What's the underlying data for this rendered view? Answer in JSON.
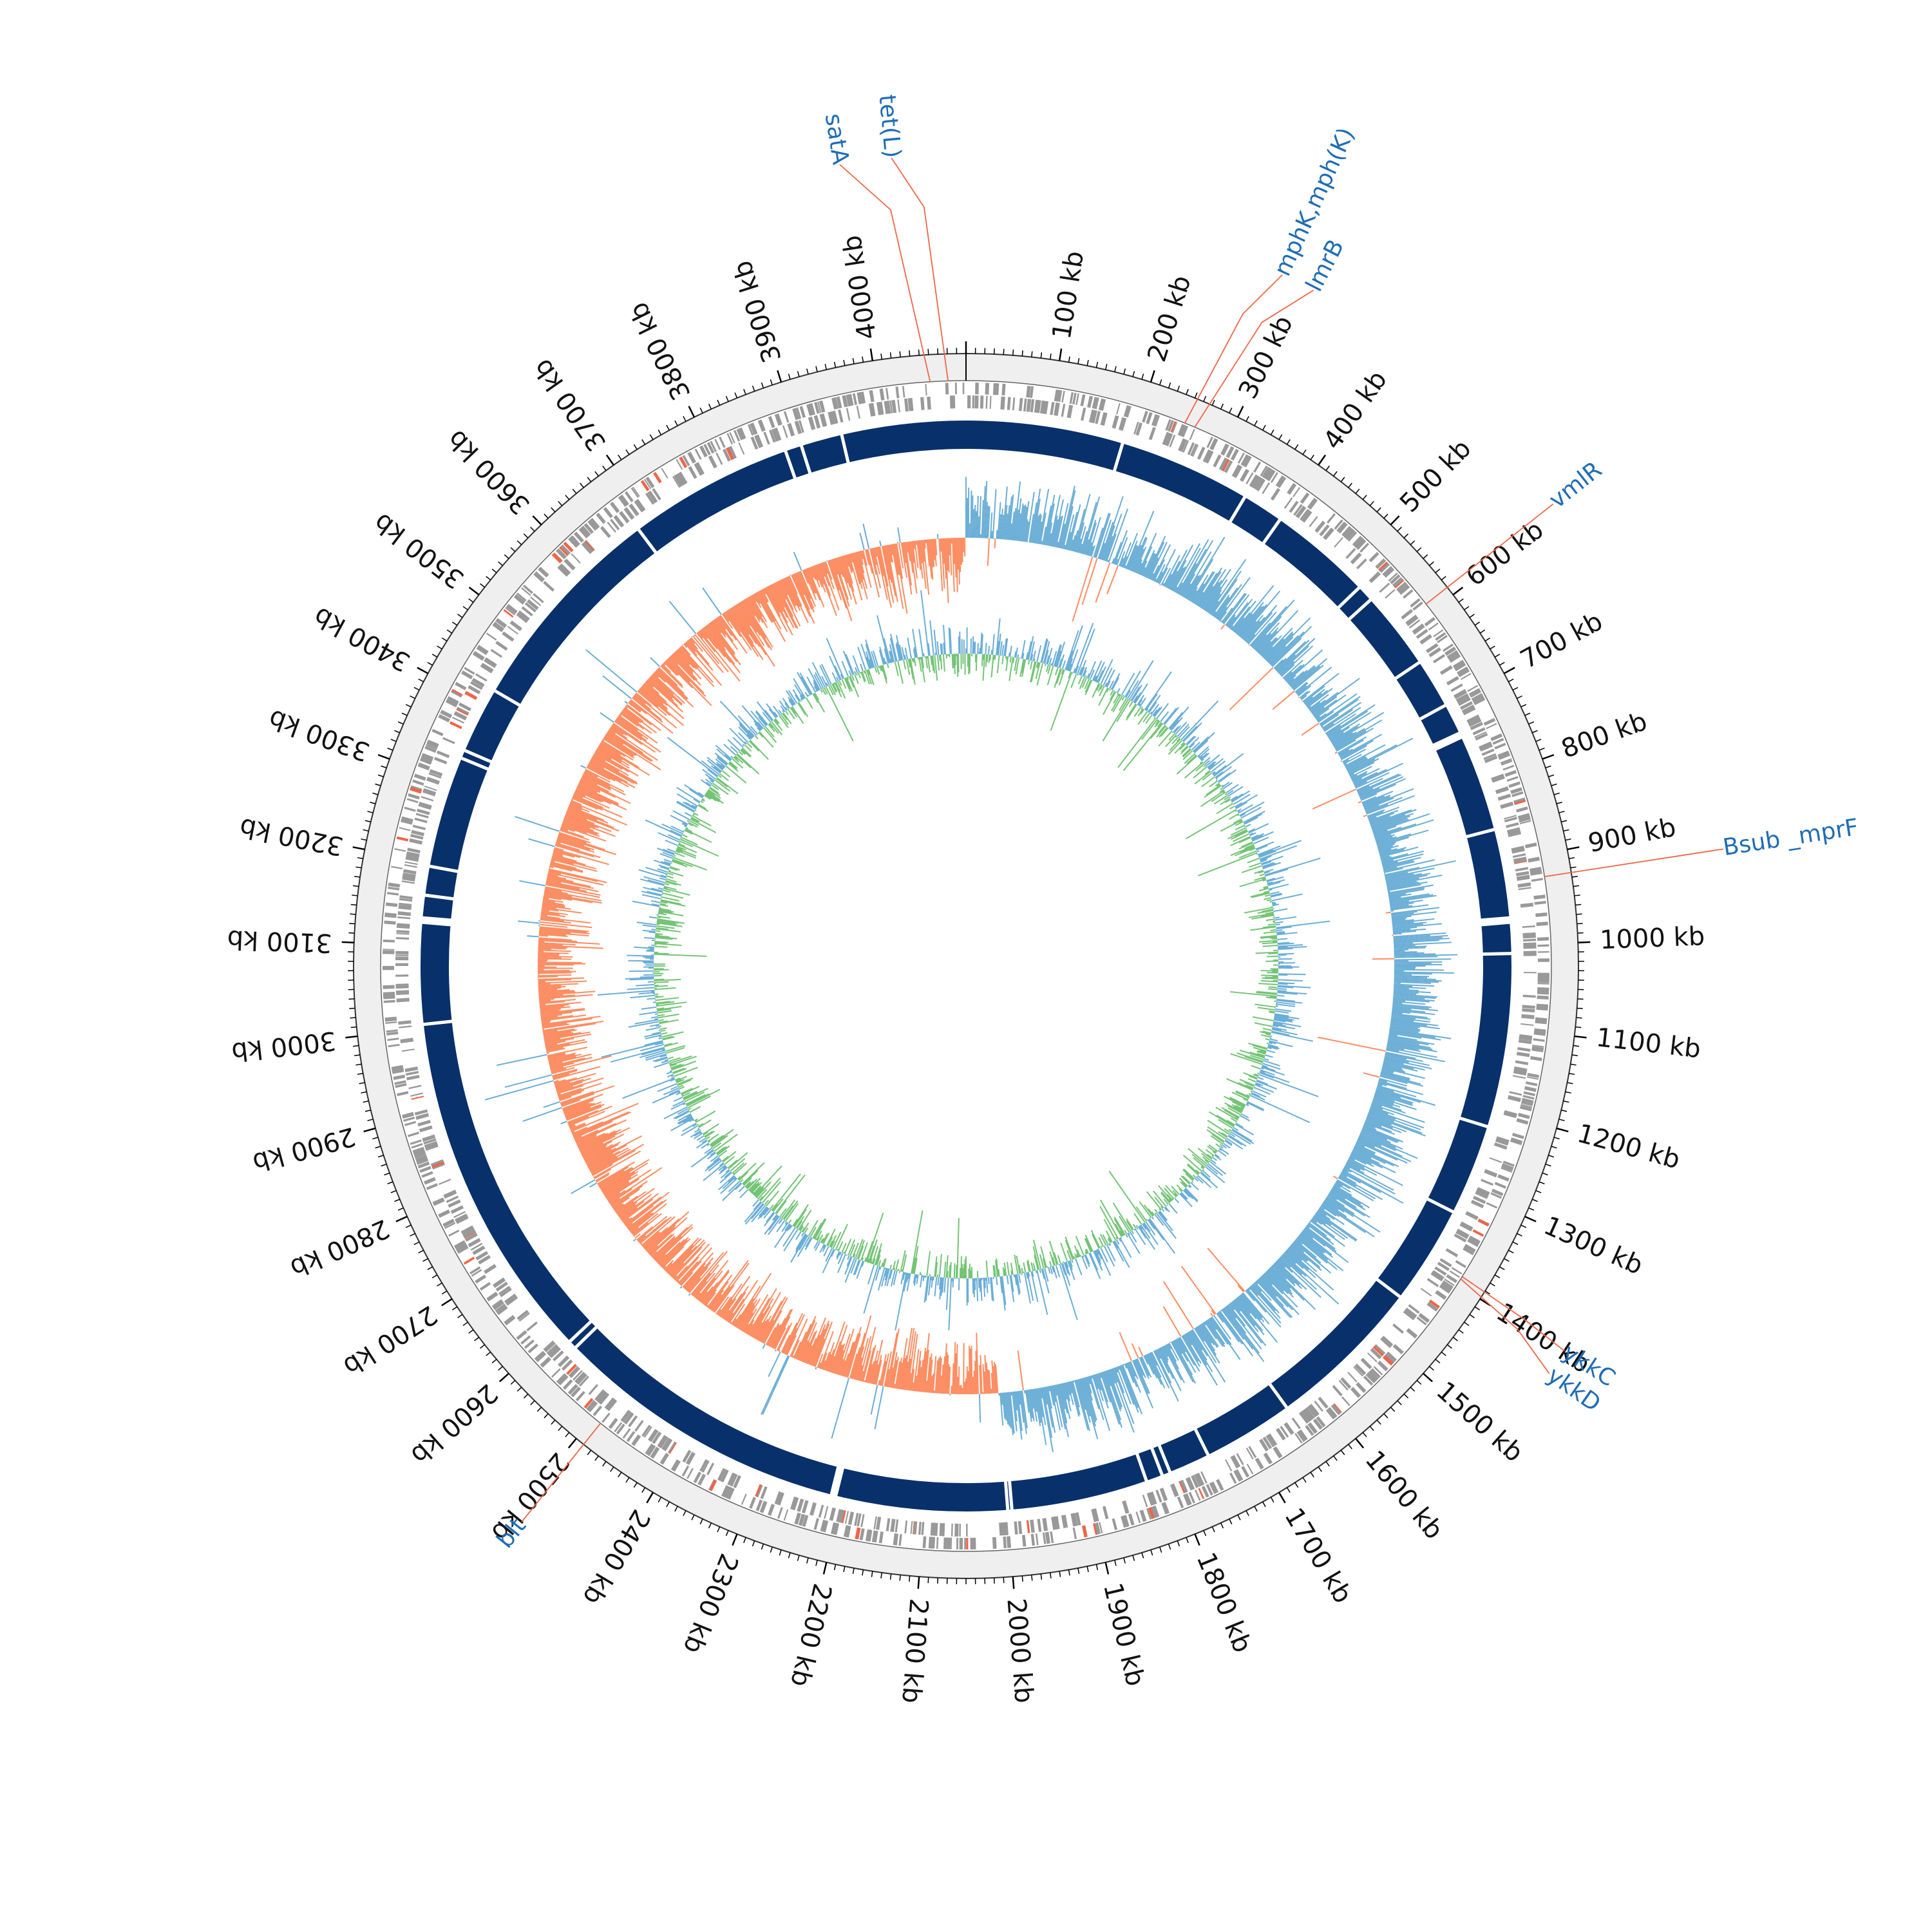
{
  "genome": {
    "length_kb": 4100,
    "tick_unit": "kb",
    "major_tick_step_kb": 100,
    "minor_tick_step_kb": 10
  },
  "tick_labels": [
    "4000 kb",
    "100 kb",
    "200 kb",
    "300 kb",
    "400 kb",
    "500 kb",
    "600 kb",
    "700 kb",
    "800 kb",
    "900 kb",
    "1000 kb",
    "1100 kb",
    "1200 kb",
    "1300 kb",
    "1400 kb",
    "1500 kb",
    "1600 kb",
    "1700 kb",
    "1800 kb",
    "1900 kb",
    "2000 kb",
    "2100 kb",
    "2200 kb",
    "2300 kb",
    "2400 kb",
    "2500 kb",
    "2600 kb",
    "2700 kb",
    "2800 kb",
    "2900 kb",
    "3000 kb",
    "3100 kb",
    "3200 kb",
    "3300 kb",
    "3400 kb",
    "3500 kb",
    "3600 kb",
    "3700 kb",
    "3800 kb",
    "3900 kb"
  ],
  "annotations": [
    {
      "label": "tet(L)",
      "position_kb": 4080
    },
    {
      "label": "satA",
      "position_kb": 4060
    },
    {
      "label": "mphK,mph(K)",
      "position_kb": 250
    },
    {
      "label": "lmrB",
      "position_kb": 262
    },
    {
      "label": "vmlR",
      "position_kb": 590
    },
    {
      "label": "Bsub _mprF",
      "position_kb": 925
    },
    {
      "label": "ykkC",
      "position_kb": 1390
    },
    {
      "label": "ykkD",
      "position_kb": 1393
    },
    {
      "label": "blt",
      "position_kb": 2490
    }
  ],
  "tracks": [
    {
      "name": "cds-track",
      "color": "#999999",
      "highlight_color": "#ef6548"
    },
    {
      "name": "contig-track",
      "color": "#08306b"
    },
    {
      "name": "gc-content-track",
      "above_color": "#6baed6",
      "below_color": "#fc8d62"
    },
    {
      "name": "gc-skew-track",
      "above_color": "#6baed6",
      "below_color": "#74c476"
    }
  ],
  "contig_gaps_kb": [
    190,
    350,
    400,
    525,
    545,
    640,
    700,
    740,
    860,
    970,
    1010,
    1220,
    1330,
    1450,
    1640,
    1750,
    1800,
    1810,
    1830,
    1995,
    2000,
    2210,
    2570,
    2580,
    3005,
    3130,
    3160,
    3195,
    3330,
    3340,
    3420,
    3680,
    3880,
    3900,
    3950
  ],
  "colors": {
    "backbone_ring": "#efefef",
    "label_text": "#1f6db5",
    "leader_line": "#ef6548",
    "tick": "#000000"
  }
}
